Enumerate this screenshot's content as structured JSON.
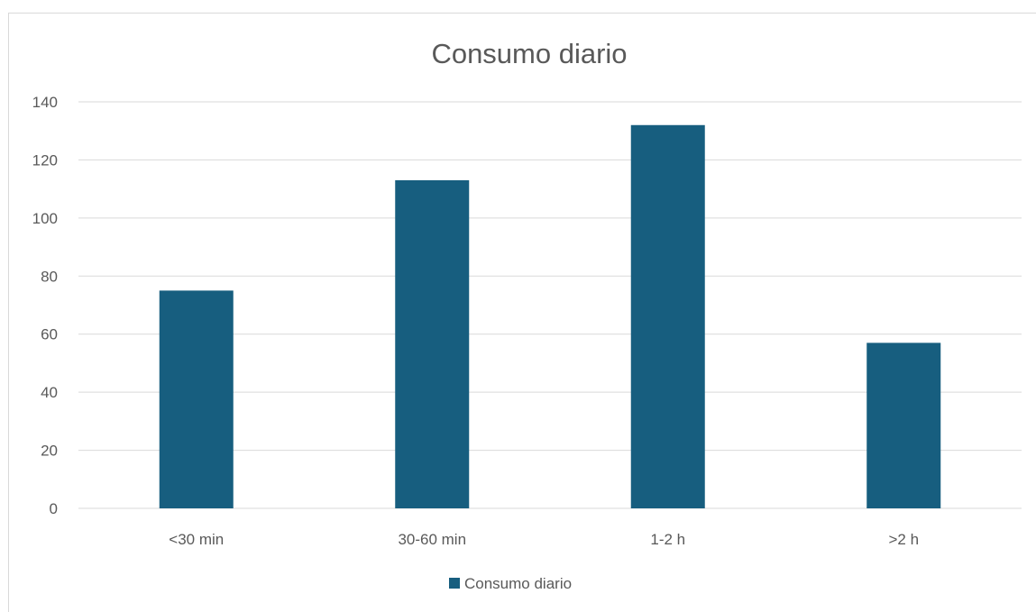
{
  "chart_data": {
    "type": "bar",
    "title": "Consumo diario",
    "categories": [
      "<30 min",
      "30-60 min",
      "1-2 h",
      ">2 h"
    ],
    "series": [
      {
        "name": "Consumo diario",
        "values": [
          75,
          113,
          132,
          57
        ],
        "color": "#175e7f"
      }
    ],
    "xlabel": "",
    "ylabel": "",
    "ylim": [
      0,
      140
    ],
    "yticks": [
      0,
      20,
      40,
      60,
      80,
      100,
      120,
      140
    ],
    "grid": true,
    "legend": "bottom"
  },
  "colors": {
    "gridline": "#d9d9d9",
    "text": "#595959",
    "bar": "#175e7f"
  }
}
